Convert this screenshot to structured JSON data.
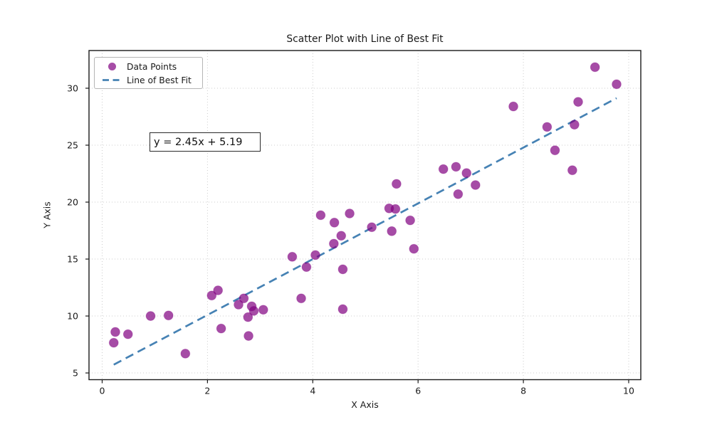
{
  "colors": {
    "point_fill": "#800080",
    "point_opacity": 0.7,
    "fit_line": "#4682B4",
    "grid": "#cccccc",
    "spine": "#1a1a1a",
    "text": "#1a1a1a"
  },
  "chart_data": {
    "type": "scatter",
    "title": "Scatter Plot with Line of Best Fit",
    "xlabel": "X Axis",
    "ylabel": "Y Axis",
    "xlim": [
      -0.25,
      10.23
    ],
    "ylim": [
      4.41,
      33.31
    ],
    "xticks": [
      0,
      2,
      4,
      6,
      8,
      10
    ],
    "yticks": [
      5,
      10,
      15,
      20,
      25,
      30
    ],
    "grid": true,
    "legend_position": "upper left",
    "annotation": {
      "text": "y = 2.45x + 5.19",
      "box": true
    },
    "series": [
      {
        "name": "Data Points",
        "kind": "scatter",
        "points": [
          [
            0.22,
            7.65
          ],
          [
            0.25,
            8.6
          ],
          [
            0.49,
            8.4
          ],
          [
            0.92,
            10.0
          ],
          [
            1.26,
            10.05
          ],
          [
            1.58,
            6.7
          ],
          [
            2.08,
            11.8
          ],
          [
            2.2,
            12.25
          ],
          [
            2.26,
            8.9
          ],
          [
            2.59,
            11.0
          ],
          [
            2.69,
            11.55
          ],
          [
            2.84,
            10.85
          ],
          [
            2.88,
            10.45
          ],
          [
            3.06,
            10.55
          ],
          [
            2.77,
            9.9
          ],
          [
            2.78,
            8.25
          ],
          [
            3.61,
            15.2
          ],
          [
            3.78,
            11.55
          ],
          [
            3.88,
            14.3
          ],
          [
            4.05,
            15.35
          ],
          [
            4.15,
            18.85
          ],
          [
            4.41,
            18.2
          ],
          [
            4.4,
            16.35
          ],
          [
            4.54,
            17.05
          ],
          [
            4.57,
            14.1
          ],
          [
            4.57,
            10.6
          ],
          [
            4.7,
            19.0
          ],
          [
            5.12,
            17.8
          ],
          [
            5.45,
            19.45
          ],
          [
            5.57,
            19.4
          ],
          [
            5.5,
            17.45
          ],
          [
            5.59,
            21.6
          ],
          [
            5.85,
            18.4
          ],
          [
            5.92,
            15.9
          ],
          [
            6.48,
            22.9
          ],
          [
            6.72,
            23.1
          ],
          [
            6.76,
            20.7
          ],
          [
            6.92,
            22.55
          ],
          [
            7.09,
            21.5
          ],
          [
            7.81,
            28.4
          ],
          [
            8.45,
            26.6
          ],
          [
            8.6,
            24.55
          ],
          [
            8.93,
            22.8
          ],
          [
            8.97,
            26.8
          ],
          [
            9.04,
            28.8
          ],
          [
            9.36,
            31.85
          ],
          [
            9.77,
            30.35
          ]
        ]
      },
      {
        "name": "Line of Best Fit",
        "kind": "line",
        "style": "dashed",
        "slope": 2.45,
        "intercept": 5.19,
        "x_range": [
          0.22,
          9.77
        ]
      }
    ]
  }
}
